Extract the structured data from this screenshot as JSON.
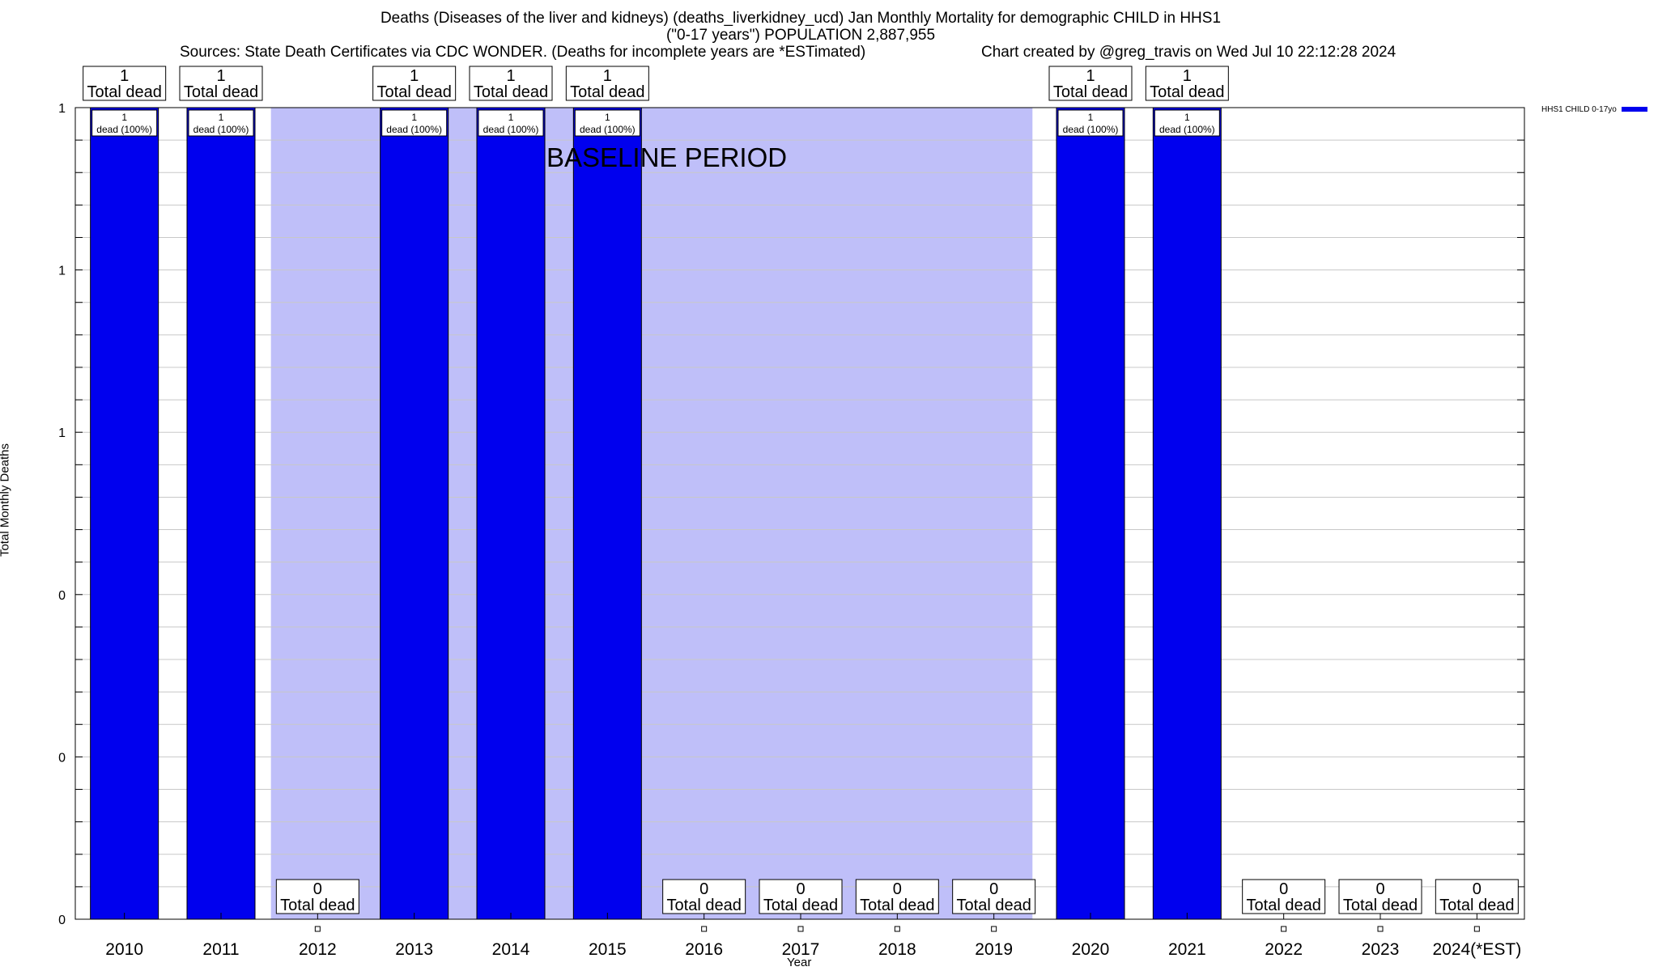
{
  "chart_data": {
    "type": "bar",
    "title_line1": "Deaths (Diseases of the liver and kidneys) (deaths_liverkidney_ucd) Jan Monthly Mortality for demographic CHILD in HHS1",
    "title_line2": "(\"0-17 years\") POPULATION 2,887,955",
    "sources": "Sources: State Death Certificates via CDC WONDER. (Deaths for incomplete years are *ESTimated)",
    "credit": "Chart created by @greg_travis on Wed Jul 10 22:12:28 2024",
    "xlabel": "Year",
    "ylabel": "Total Monthly Deaths",
    "ylim": [
      0,
      1
    ],
    "y_tick_labels": [
      "0",
      "0",
      "0",
      "1",
      "1",
      "1"
    ],
    "grid": true,
    "legend_position": "top-right",
    "baseline_label": "BASELINE PERIOD",
    "baseline_range": [
      "2012",
      "2019"
    ],
    "categories": [
      "2010",
      "2011",
      "2012",
      "2013",
      "2014",
      "2015",
      "2016",
      "2017",
      "2018",
      "2019",
      "2020",
      "2021",
      "2022",
      "2023",
      "2024(*EST)"
    ],
    "series": [
      {
        "name": "HHS1 CHILD 0-17yo",
        "color": "#0000ee",
        "values": [
          1,
          1,
          0,
          1,
          1,
          1,
          0,
          0,
          0,
          0,
          1,
          1,
          0,
          0,
          0
        ]
      }
    ],
    "total_label_text": "Total dead",
    "bar_label_text": "dead (100%)",
    "baseline_color": "#bfbff9"
  }
}
